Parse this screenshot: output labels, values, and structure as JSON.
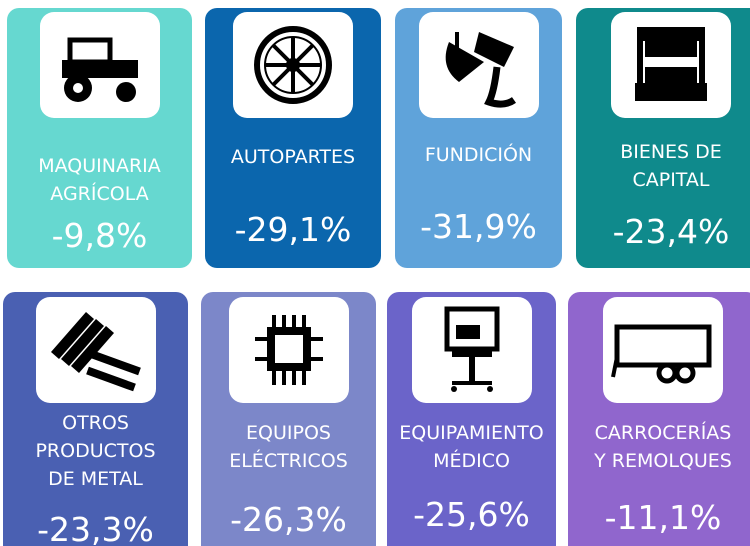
{
  "tiles": [
    {
      "label": [
        "MAQUINARIA",
        "AGRÍCOLA"
      ],
      "value": "-9,8%"
    },
    {
      "label": [
        "AUTOPARTES"
      ],
      "value": "-29,1%"
    },
    {
      "label": [
        "FUNDICIÓN"
      ],
      "value": "-31,9%"
    },
    {
      "label": [
        "BIENES DE",
        "CAPITAL"
      ],
      "value": "-23,4%"
    },
    {
      "label": [
        "OTROS",
        "PRODUCTOS",
        "DE METAL"
      ],
      "value": "-23,3%"
    },
    {
      "label": [
        "EQUIPOS",
        "ELÉCTRICOS"
      ],
      "value": "-26,3%"
    },
    {
      "label": [
        "EQUIPAMIENTO",
        "MÉDICO"
      ],
      "value": "-25,6%"
    },
    {
      "label": [
        "CARROCERÍAS",
        "Y REMOLQUES"
      ],
      "value": "-11,1%"
    }
  ]
}
